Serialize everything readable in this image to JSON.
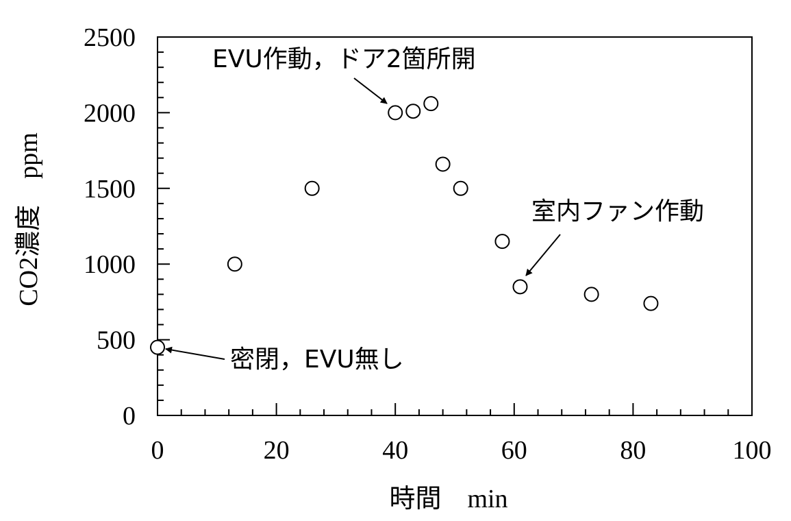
{
  "chart_data": {
    "type": "scatter",
    "title": "",
    "xlabel": "時間　min",
    "ylabel": "CO2濃度　ppm",
    "xlim": [
      0,
      100
    ],
    "ylim": [
      0,
      2500
    ],
    "x_ticks": [
      "0",
      "20",
      "40",
      "60",
      "80",
      "100"
    ],
    "y_ticks": [
      "0",
      "500",
      "1000",
      "1500",
      "2000",
      "2500"
    ],
    "grid": false,
    "legend": "none",
    "marker": "open-circle",
    "series": [
      {
        "x": [
          0,
          13,
          26,
          40,
          43,
          46,
          48,
          51,
          58,
          61,
          73,
          83
        ],
        "y": [
          450,
          1000,
          1500,
          2000,
          2010,
          2060,
          1660,
          1500,
          1150,
          850,
          800,
          740
        ]
      }
    ],
    "annotations": [
      {
        "text": "EVU作動，ドア2箇所開",
        "x": 40,
        "y": 2000
      },
      {
        "text": "室内ファン作動",
        "x": 61,
        "y": 850
      },
      {
        "text": "密閉，EVU無し",
        "x": 0,
        "y": 450
      }
    ]
  }
}
